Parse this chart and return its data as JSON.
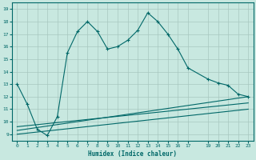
{
  "xlabel": "Humidex (Indice chaleur)",
  "bg_color": "#c8e8e0",
  "grid_color": "#a8c8c0",
  "line_color": "#006868",
  "xlim": [
    -0.5,
    23.5
  ],
  "ylim": [
    8.5,
    19.5
  ],
  "xticks": [
    0,
    1,
    2,
    3,
    4,
    5,
    6,
    7,
    8,
    9,
    10,
    11,
    12,
    13,
    14,
    15,
    16,
    17,
    19,
    20,
    21,
    22,
    23
  ],
  "yticks": [
    9,
    10,
    11,
    12,
    13,
    14,
    15,
    16,
    17,
    18,
    19
  ],
  "line1_x": [
    0,
    1,
    2,
    3,
    4,
    5,
    6,
    7,
    8,
    9,
    10,
    11,
    12,
    13,
    14,
    15,
    16,
    17,
    19,
    20,
    21,
    22,
    23
  ],
  "line1_y": [
    13.0,
    11.4,
    9.4,
    8.9,
    10.4,
    15.5,
    17.2,
    18.0,
    17.2,
    15.8,
    16.0,
    16.5,
    17.3,
    18.7,
    18.0,
    17.0,
    15.8,
    14.3,
    13.4,
    13.1,
    12.9,
    12.2,
    12.0
  ],
  "line2_x": [
    0,
    23
  ],
  "line2_y": [
    9.6,
    11.5
  ],
  "line3_x": [
    0,
    23
  ],
  "line3_y": [
    9.3,
    12.0
  ],
  "line4_x": [
    0,
    23
  ],
  "line4_y": [
    9.0,
    11.0
  ]
}
